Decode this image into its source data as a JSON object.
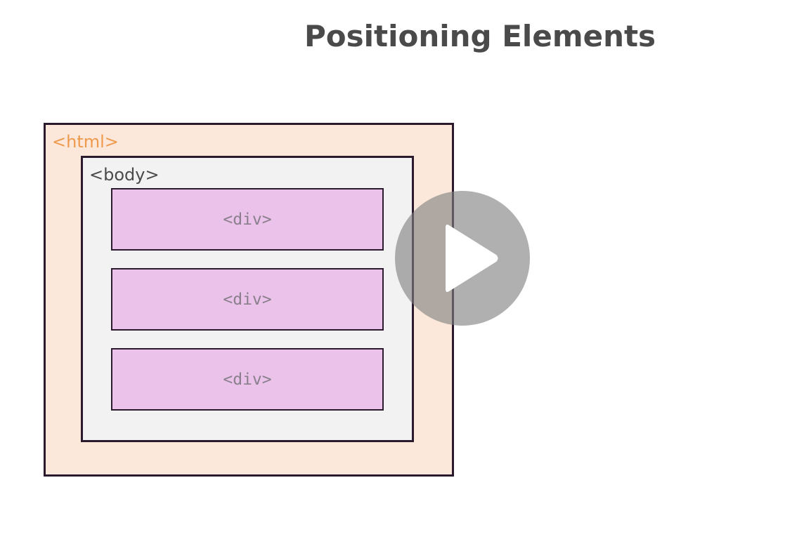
{
  "slide": {
    "title": "Positioning Elements"
  },
  "diagram": {
    "html_label": "<html>",
    "body_label": "<body>",
    "divs": [
      {
        "label": "<div>"
      },
      {
        "label": "<div>"
      },
      {
        "label": "<div>"
      }
    ]
  },
  "player": {
    "icon": "play-icon"
  },
  "colors": {
    "html_fill": "#fbe8da",
    "html_label": "#ee9a4d",
    "body_fill": "#f2f2f2",
    "div_fill": "#eac2ea",
    "border": "#2b1a2e",
    "title": "#4a4a4a"
  }
}
